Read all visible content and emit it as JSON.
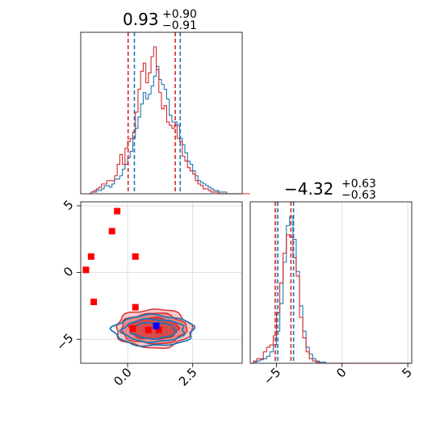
{
  "chart_data": [
    {
      "type": "histogram",
      "panel": "top-left",
      "title": "0.93",
      "title_sup": "+0.90",
      "title_sub": "−0.91",
      "xlim": [
        -1.8,
        4.4
      ],
      "bin_start": -1.5,
      "bin_width": 0.1,
      "series": [
        {
          "color": "#1f77b4",
          "counts": [
            0,
            1,
            1,
            2,
            2,
            3,
            5,
            5,
            4,
            6,
            9,
            9,
            11,
            15,
            18,
            22,
            26,
            34,
            40,
            47,
            55,
            62,
            58,
            61,
            66,
            72,
            78,
            70,
            67,
            64,
            58,
            48,
            44,
            44,
            42,
            34,
            30,
            25,
            20,
            18,
            14,
            11,
            8,
            7,
            6,
            5,
            4,
            3,
            2,
            2,
            1,
            1,
            1,
            0,
            0,
            0,
            0,
            0,
            0,
            0,
            0,
            0
          ]
        },
        {
          "color": "#d62728",
          "counts": [
            0,
            1,
            2,
            3,
            4,
            6,
            6,
            8,
            8,
            8,
            11,
            18,
            24,
            18,
            28,
            32,
            34,
            38,
            50,
            64,
            75,
            80,
            68,
            74,
            84,
            90,
            76,
            62,
            52,
            54,
            44,
            42,
            40,
            42,
            34,
            32,
            23,
            20,
            16,
            14,
            12,
            8,
            6,
            5,
            3,
            3,
            2,
            1,
            1,
            1,
            0,
            0,
            0,
            0,
            0,
            0,
            0,
            0,
            0,
            0,
            0,
            0
          ]
        }
      ],
      "quantile_lines": [
        {
          "color": "#1f77b4",
          "values": [
            0.26,
            2.02
          ]
        },
        {
          "color": "#d62728",
          "values": [
            0.02,
            1.83
          ]
        }
      ]
    },
    {
      "type": "contour_scatter",
      "panel": "bottom-left",
      "xlim": [
        -1.8,
        4.4
      ],
      "ylim": [
        -6.8,
        5.3
      ],
      "xticks": [
        0.0,
        2.5
      ],
      "xtick_labels": [
        "0.0",
        "2.5"
      ],
      "yticks": [
        -5,
        0,
        5
      ],
      "ytick_labels": [
        "−5",
        "0",
        "5"
      ],
      "contours": [
        {
          "color": "#1f77b4",
          "center": [
            1.0,
            -4.35
          ],
          "radii": [
            [
              1.55,
              1.15
            ],
            [
              1.2,
              0.85
            ],
            [
              0.85,
              0.6
            ]
          ]
        },
        {
          "color": "#d62728",
          "center": [
            1.0,
            -4.2
          ],
          "radii": [
            [
              1.45,
              1.45
            ],
            [
              1.25,
              1.15
            ],
            [
              0.95,
              0.8
            ]
          ]
        }
      ],
      "points": {
        "red": [
          [
            -1.6,
            0.2
          ],
          [
            -1.4,
            1.2
          ],
          [
            -1.3,
            -2.2
          ],
          [
            -0.6,
            3.1
          ],
          [
            -0.4,
            4.6
          ],
          [
            0.3,
            1.2
          ],
          [
            0.3,
            -2.6
          ],
          [
            0.2,
            -4.2
          ],
          [
            0.8,
            -4.3
          ],
          [
            1.2,
            -4.3
          ]
        ],
        "blue": [
          [
            1.1,
            -4.0
          ]
        ]
      }
    },
    {
      "type": "histogram",
      "panel": "bottom-right",
      "title": "−4.32",
      "title_sup": "+0.63",
      "title_sub": "−0.63",
      "xlim": [
        -7.0,
        5.3
      ],
      "xticks": [
        -5,
        0,
        5
      ],
      "xtick_labels": [
        "−5",
        "0",
        "5"
      ],
      "bin_start": -7.0,
      "bin_width": 0.25,
      "series": [
        {
          "color": "#1f77b4",
          "counts": [
            0,
            1,
            2,
            3,
            4,
            6,
            10,
            16,
            28,
            52,
            88,
            120,
            128,
            108,
            80,
            50,
            28,
            14,
            8,
            4,
            2,
            1,
            1,
            0,
            0,
            0,
            0,
            0,
            0,
            0,
            0,
            0,
            0,
            0,
            0,
            0,
            0,
            0,
            0,
            0,
            0,
            0,
            0,
            0,
            0,
            0,
            0,
            0,
            0
          ]
        },
        {
          "color": "#d62728",
          "counts": [
            0,
            2,
            4,
            4,
            10,
            14,
            16,
            24,
            44,
            70,
            96,
            112,
            110,
            92,
            76,
            40,
            22,
            10,
            4,
            2,
            1,
            0,
            0,
            0,
            0,
            0,
            0,
            0,
            0,
            0,
            0,
            0,
            0,
            0,
            0,
            0,
            0,
            0,
            0,
            0,
            0,
            0,
            0,
            0,
            0,
            0,
            0,
            0,
            0
          ]
        }
      ],
      "quantile_lines": [
        {
          "color": "#1f77b4",
          "values": [
            -4.9,
            -3.7
          ]
        },
        {
          "color": "#d62728",
          "values": [
            -5.1,
            -3.9
          ]
        }
      ]
    }
  ]
}
